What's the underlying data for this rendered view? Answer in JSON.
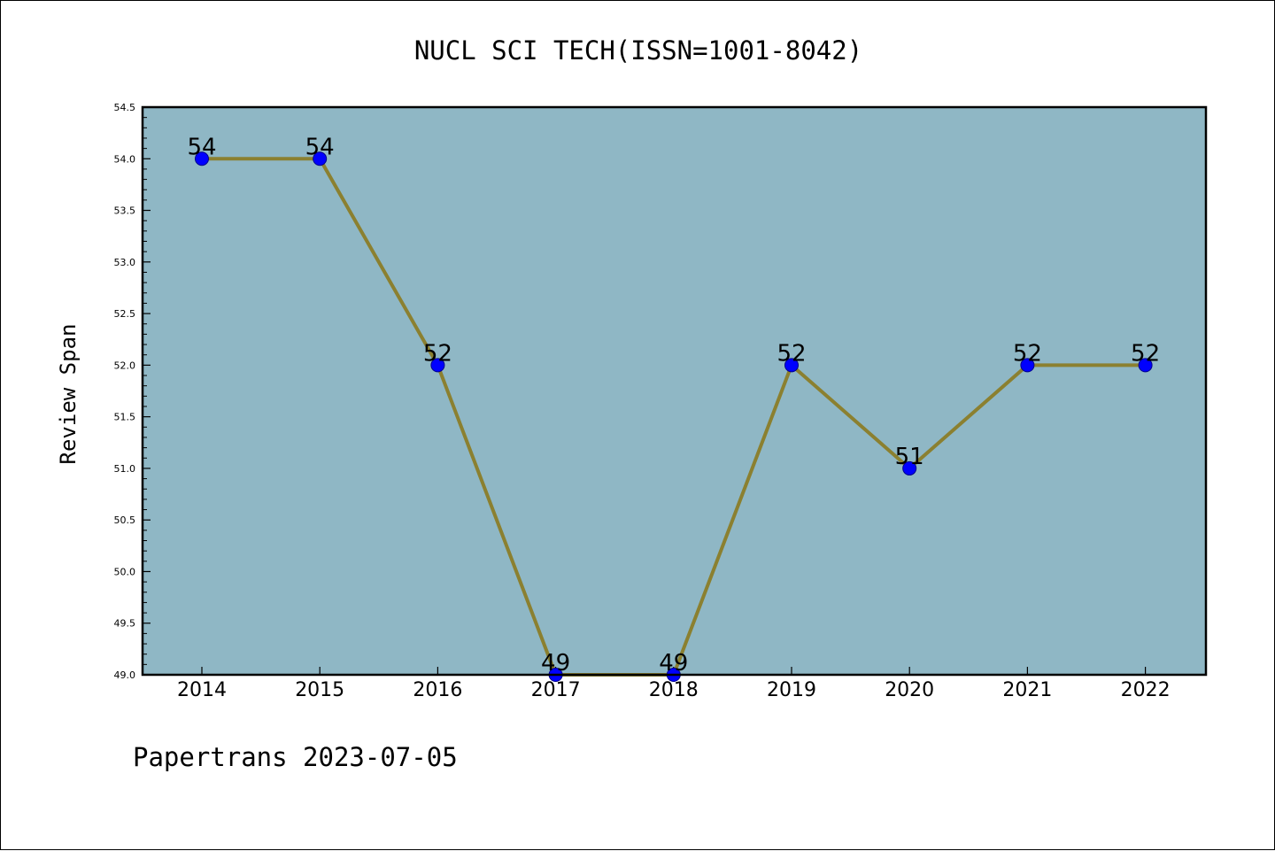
{
  "footer": {
    "text": "Papertrans 2023-07-05"
  },
  "chart_data": {
    "type": "line",
    "title": "NUCL SCI TECH(ISSN=1001-8042)",
    "xlabel": "",
    "ylabel": "Review Span",
    "categories": [
      "2014",
      "2015",
      "2016",
      "2017",
      "2018",
      "2019",
      "2020",
      "2021",
      "2022"
    ],
    "series": [
      {
        "values": [
          54,
          54,
          52,
          49,
          49,
          52,
          51,
          52,
          52
        ],
        "data_labels": [
          "54",
          "54",
          "52",
          "49",
          "49",
          "52",
          "51",
          "52",
          "52"
        ]
      }
    ],
    "ylim": [
      49.0,
      54.5
    ],
    "yticks": [
      "49.0",
      "49.5",
      "50.0",
      "50.5",
      "51.0",
      "51.5",
      "52.0",
      "52.5",
      "53.0",
      "53.5",
      "54.0",
      "54.5"
    ],
    "grid": false,
    "legend": "none",
    "colors": {
      "plot_background": "#8fb7c5",
      "line": "#8b8030",
      "marker": "#0000ff",
      "marker_edge": "#00008b"
    }
  }
}
